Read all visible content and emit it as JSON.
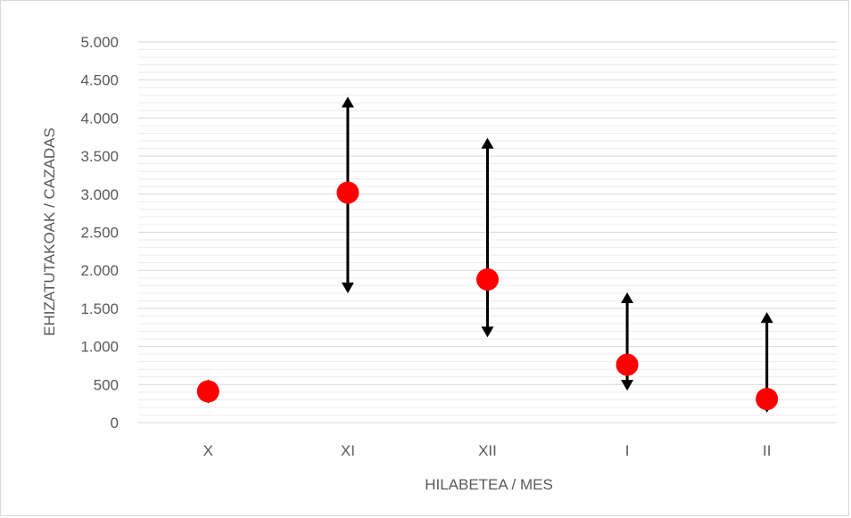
{
  "chart_data": {
    "type": "scatter",
    "title": "",
    "xlabel": "HILABETEA / MES",
    "ylabel": "EHIZATUTAKOAK / CAZADAS",
    "categories": [
      "X",
      "XI",
      "XII",
      "I",
      "II"
    ],
    "series": [
      {
        "values": [
          410,
          3020,
          1880,
          760,
          310
        ],
        "error_low": [
          250,
          1700,
          1120,
          420,
          130
        ],
        "error_high": [
          570,
          4280,
          3740,
          1710,
          1450
        ]
      }
    ],
    "ylim": [
      0,
      5000
    ],
    "yticks": [
      0,
      500,
      1000,
      1500,
      2000,
      2500,
      3000,
      3500,
      4000,
      4500,
      5000
    ],
    "ytick_labels": [
      "0",
      "500",
      "1.000",
      "1.500",
      "2.000",
      "2.500",
      "3.000",
      "3.500",
      "4.000",
      "4.500",
      "5.000"
    ],
    "grid": true,
    "legend": "none",
    "colors": {
      "marker": "#ff0000",
      "error_bar": "#000000",
      "grid_major": "#d9d9d9",
      "grid_minor": "#ececec",
      "text": "#595959"
    }
  }
}
